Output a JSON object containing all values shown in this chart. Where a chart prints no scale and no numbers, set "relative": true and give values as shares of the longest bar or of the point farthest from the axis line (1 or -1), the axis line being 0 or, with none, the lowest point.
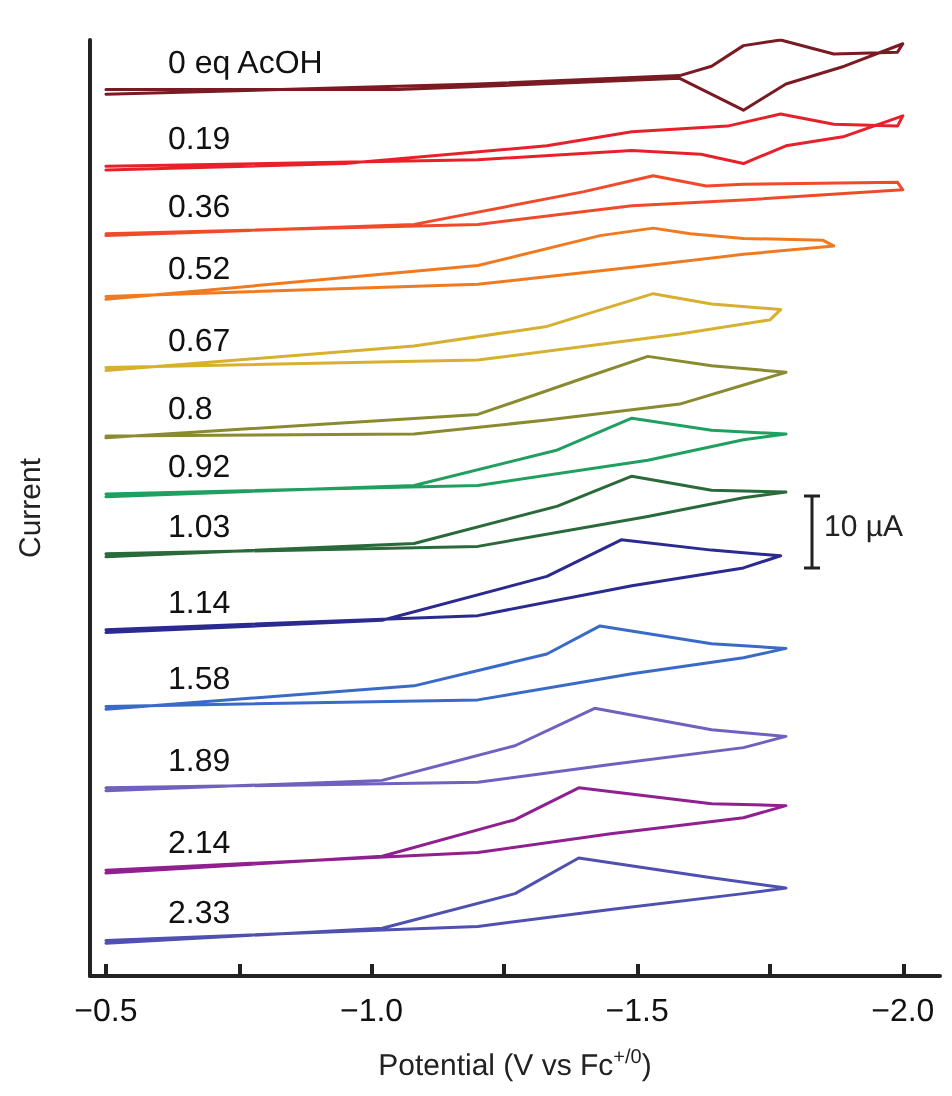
{
  "chart_data": {
    "type": "line",
    "relative": true,
    "xlabel": "Potential (V vs Fc$^{+/0}$)",
    "ylabel": "Current",
    "annotations": [
      "10 µA"
    ],
    "xlim": [
      -0.47,
      -2.07
    ],
    "xticks": [
      {
        "value": -0.5,
        "label": "−0.5"
      },
      {
        "value": -0.75,
        "label": null
      },
      {
        "value": -1.0,
        "label": "−1.0"
      },
      {
        "value": -1.25,
        "label": null
      },
      {
        "value": -1.5,
        "label": "−1.5"
      },
      {
        "value": -1.75,
        "label": null
      },
      {
        "value": -2.0,
        "label": "−2.0"
      }
    ],
    "legend": false,
    "grid": false,
    "marker": "none",
    "line_style": "solid",
    "series": [
      {
        "name": "0 eq AcOH",
        "color": "#7a1a22",
        "x": [
          -0.5,
          -1.05,
          -1.58,
          -1.7,
          -1.78,
          -1.89,
          -2.0,
          -1.99,
          -1.87,
          -1.77,
          -1.7,
          -1.64,
          -1.58,
          -1.2,
          -0.5
        ],
        "values": [
          0.947,
          0.947,
          0.959,
          0.925,
          0.953,
          0.972,
          0.996,
          0.987,
          0.985,
          1.0,
          0.994,
          0.972,
          0.962,
          0.953,
          0.942
        ]
      },
      {
        "name": "0.19",
        "color": "#e8202a",
        "x": [
          -0.5,
          -1.2,
          -1.49,
          -1.62,
          -1.7,
          -1.78,
          -1.89,
          -2.0,
          -1.99,
          -1.87,
          -1.77,
          -1.67,
          -1.49,
          -1.33,
          -0.95,
          -0.5
        ],
        "values": [
          0.865,
          0.872,
          0.882,
          0.878,
          0.868,
          0.887,
          0.897,
          0.919,
          0.908,
          0.91,
          0.921,
          0.908,
          0.902,
          0.887,
          0.868,
          0.861
        ]
      },
      {
        "name": "0.36",
        "color": "#f04a2a",
        "x": [
          -0.5,
          -1.2,
          -1.49,
          -1.7,
          -2.0,
          -1.99,
          -1.7,
          -1.63,
          -1.53,
          -1.4,
          -1.08,
          -0.5
        ],
        "values": [
          0.793,
          0.803,
          0.823,
          0.829,
          0.84,
          0.848,
          0.846,
          0.844,
          0.855,
          0.838,
          0.803,
          0.791
        ]
      },
      {
        "name": "0.52",
        "color": "#f07a20",
        "x": [
          -0.5,
          -1.2,
          -1.52,
          -1.7,
          -1.87,
          -1.85,
          -1.7,
          -1.6,
          -1.53,
          -1.43,
          -1.2,
          -0.5
        ],
        "values": [
          0.726,
          0.739,
          0.759,
          0.771,
          0.78,
          0.786,
          0.788,
          0.793,
          0.799,
          0.791,
          0.759,
          0.723
        ]
      },
      {
        "name": "0.67",
        "color": "#d8b030",
        "x": [
          -0.5,
          -1.2,
          -1.58,
          -1.75,
          -1.77,
          -1.64,
          -1.53,
          -1.33,
          -1.08,
          -0.5
        ],
        "values": [
          0.65,
          0.658,
          0.686,
          0.701,
          0.712,
          0.718,
          0.729,
          0.694,
          0.673,
          0.647
        ]
      },
      {
        "name": "0.8",
        "color": "#8a8a30",
        "x": [
          -0.5,
          -1.08,
          -1.33,
          -1.58,
          -1.78,
          -1.64,
          -1.52,
          -1.39,
          -1.2,
          -0.5
        ],
        "values": [
          0.577,
          0.579,
          0.594,
          0.611,
          0.645,
          0.652,
          0.662,
          0.637,
          0.6,
          0.575
        ]
      },
      {
        "name": "0.92",
        "color": "#20a060",
        "x": [
          -0.5,
          -1.2,
          -1.52,
          -1.7,
          -1.78,
          -1.64,
          -1.49,
          -1.35,
          -1.08,
          -0.5
        ],
        "values": [
          0.515,
          0.524,
          0.551,
          0.573,
          0.579,
          0.583,
          0.596,
          0.562,
          0.524,
          0.512
        ]
      },
      {
        "name": "1.03",
        "color": "#2a6a3a",
        "x": [
          -0.5,
          -1.2,
          -1.52,
          -1.7,
          -1.78,
          -1.64,
          -1.49,
          -1.35,
          -1.08,
          -0.5
        ],
        "values": [
          0.451,
          0.459,
          0.491,
          0.511,
          0.517,
          0.519,
          0.534,
          0.502,
          0.462,
          0.448
        ]
      },
      {
        "name": "1.14",
        "color": "#2a2a90",
        "x": [
          -0.5,
          -1.2,
          -1.49,
          -1.7,
          -1.77,
          -1.64,
          -1.47,
          -1.33,
          -1.02,
          -0.5
        ],
        "values": [
          0.37,
          0.385,
          0.417,
          0.436,
          0.449,
          0.455,
          0.466,
          0.427,
          0.38,
          0.367
        ]
      },
      {
        "name": "1.58",
        "color": "#3a6ac8",
        "x": [
          -0.5,
          -1.2,
          -1.49,
          -1.7,
          -1.78,
          -1.64,
          -1.43,
          -1.33,
          -1.08,
          -0.5
        ],
        "values": [
          0.288,
          0.295,
          0.323,
          0.34,
          0.35,
          0.355,
          0.374,
          0.344,
          0.31,
          0.285
        ]
      },
      {
        "name": "1.89",
        "color": "#7060c0",
        "x": [
          -0.5,
          -1.2,
          -1.45,
          -1.7,
          -1.78,
          -1.64,
          -1.42,
          -1.27,
          -1.02,
          -0.5
        ],
        "values": [
          0.201,
          0.207,
          0.226,
          0.244,
          0.256,
          0.263,
          0.286,
          0.246,
          0.209,
          0.198
        ]
      },
      {
        "name": "2.14",
        "color": "#902090",
        "x": [
          -0.5,
          -1.2,
          -1.45,
          -1.7,
          -1.78,
          -1.64,
          -1.39,
          -1.27,
          -1.02,
          -0.5
        ],
        "values": [
          0.113,
          0.132,
          0.152,
          0.169,
          0.182,
          0.184,
          0.201,
          0.167,
          0.128,
          0.11
        ]
      },
      {
        "name": "2.33",
        "color": "#5050b0",
        "x": [
          -0.5,
          -1.2,
          -1.45,
          -1.7,
          -1.78,
          -1.64,
          -1.39,
          -1.27,
          -1.02,
          -0.5
        ],
        "values": [
          0.038,
          0.053,
          0.071,
          0.088,
          0.094,
          0.105,
          0.126,
          0.088,
          0.051,
          0.035
        ]
      }
    ]
  }
}
